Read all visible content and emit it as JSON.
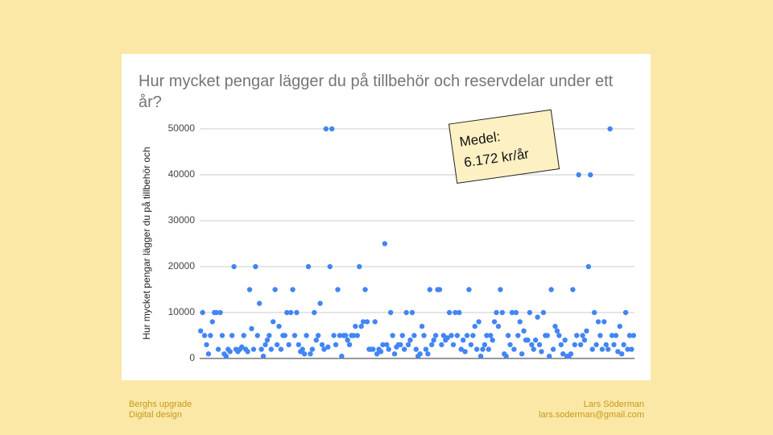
{
  "chart_data": {
    "type": "scatter",
    "title": "Hur mycket pengar lägger du på tillbehör och reservdelar under ett år?",
    "y_label": "Hur mycket pengar lägger du på tillbehör och",
    "annotation": [
      "Medel:",
      "6.172 kr/år"
    ],
    "color": "#4285f4",
    "ylim": [
      0,
      50000
    ],
    "yticks": [
      0,
      10000,
      20000,
      30000,
      40000,
      50000
    ],
    "grid": true,
    "values": [
      6000,
      10000,
      5000,
      3000,
      1000,
      5000,
      8000,
      10000,
      10000,
      2000,
      10000,
      5000,
      1000,
      500,
      2000,
      1500,
      5000,
      20000,
      2000,
      1500,
      2000,
      2500,
      5000,
      2000,
      1500,
      15000,
      6500,
      2000,
      20000,
      5000,
      12000,
      2000,
      500,
      3000,
      4000,
      5000,
      2000,
      8000,
      15000,
      3000,
      7000,
      2000,
      5000,
      5000,
      10000,
      3000,
      10000,
      15000,
      5000,
      10000,
      3000,
      1500,
      2000,
      1000,
      5000,
      20000,
      1000,
      2000,
      10000,
      4000,
      5000,
      12000,
      3000,
      2000,
      50000,
      2500,
      20000,
      50000,
      5000,
      3000,
      15000,
      5000,
      500,
      5000,
      5000,
      4000,
      3000,
      5000,
      5000,
      7000,
      5000,
      20000,
      7000,
      8000,
      15000,
      8000,
      2000,
      2000,
      2000,
      8000,
      1000,
      2000,
      1500,
      3000,
      25000,
      3000,
      2000,
      10000,
      5000,
      1000,
      2500,
      3000,
      3000,
      5000,
      2000,
      10000,
      3000,
      4000,
      10000,
      5000,
      2000,
      500,
      1000,
      7000,
      5000,
      2000,
      1000,
      15000,
      3000,
      4000,
      5000,
      15000,
      15000,
      3000,
      5000,
      4000,
      4500,
      10000,
      5000,
      3000,
      10000,
      5000,
      10000,
      2000,
      4000,
      1500,
      5000,
      15000,
      3000,
      5000,
      7000,
      2000,
      8000,
      500,
      2000,
      3000,
      5000,
      2000,
      5000,
      4000,
      8000,
      10000,
      7000,
      15000,
      10000,
      1000,
      500,
      5000,
      3000,
      10000,
      2000,
      10000,
      5000,
      8000,
      1000,
      6000,
      4000,
      4000,
      10000,
      3000,
      2000,
      4000,
      9000,
      3000,
      1500,
      10000,
      5000,
      5000,
      500,
      15000,
      2000,
      7000,
      6000,
      5000,
      3000,
      1000,
      4000,
      500,
      500,
      1000,
      15000,
      3000,
      5000,
      40000,
      3000,
      5000,
      4000,
      6000,
      20000,
      40000,
      2000,
      10000,
      3000,
      8000,
      5000,
      2000,
      8000,
      3000,
      2000,
      50000,
      5000,
      3000,
      5000,
      1500,
      7000,
      1000,
      3000,
      10000,
      2000,
      5000,
      2000,
      5000
    ]
  },
  "footer": {
    "left": [
      "Berghs upgrade",
      "Digital design"
    ],
    "right": [
      "Lars Söderman",
      "lars.soderman@gmail.com"
    ]
  }
}
